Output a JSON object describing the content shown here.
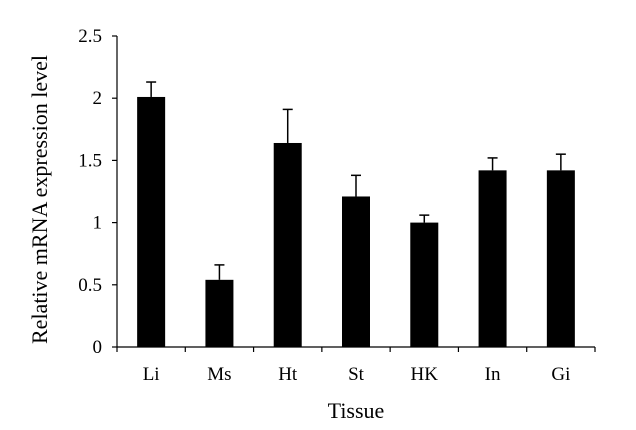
{
  "chart_data": {
    "type": "bar",
    "title": "",
    "xlabel": "Tissue",
    "ylabel": "Relative mRNA  expression level",
    "categories": [
      "Li",
      "Ms",
      "Ht",
      "St",
      "HK",
      "In",
      "Gi"
    ],
    "values": [
      2.01,
      0.54,
      1.64,
      1.21,
      1.0,
      1.42,
      1.42
    ],
    "error_plus": [
      0.12,
      0.12,
      0.27,
      0.17,
      0.06,
      0.1,
      0.13
    ],
    "ylim": [
      0,
      2.5
    ],
    "yticks": [
      "0",
      "0.5",
      "1",
      "1.5",
      "2",
      "2.5"
    ],
    "grid": false,
    "legend": "none",
    "bar_color": "#000000",
    "errorbar_style": "upper-only with cap"
  }
}
